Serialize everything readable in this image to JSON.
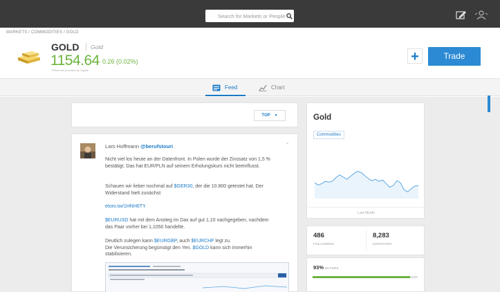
{
  "search": {
    "placeholder": "Search for Markets or People"
  },
  "breadcrumb": "MARKETS / COMMODITIES / GOLD",
  "asset": {
    "name": "GOLD",
    "subtitle": "Gold",
    "price": "1154.64",
    "change": "0.26 (0.02%)",
    "price_note": "Prices are provided by Xignite"
  },
  "actions": {
    "add_label": "+",
    "trade_label": "Trade"
  },
  "tabs": [
    {
      "label": "Feed",
      "active": true
    },
    {
      "label": "Chart",
      "active": false
    }
  ],
  "feed": {
    "sort_label": "TOP",
    "post": {
      "author": "Lars Hoffmann",
      "handle": "@berufstouri",
      "p1": "Nicht viel los heute an der Datenfront. In Polen wurde der Zinssatz von 1,5 % bestätigt. Das hat EUR/PLN auf seinem Erholungskurs nicht beeinflusst.",
      "p2_before": "Schauen wir lieber nochmal auf ",
      "p2_link": "$GER30",
      "p2_after": ", der die 10.800 getestet hat. Der Widerstand hielt zunächst",
      "p3_link": "etoro.tw/1HNH6TY",
      "p4_link": "$EURUSD",
      "p4_after": " hat mit dem Anstieg im Dax auf gut 1,10 nachgegeben, nachdem das Paar vorher bei 1,1050 handelte.",
      "p5_before": "Deutlich zulegen kann ",
      "p5_link1": "$EURGBP",
      "p5_mid1": ", auch ",
      "p5_link2": "$EURCHF",
      "p5_mid2": " legt zu.",
      "p5_line2": "Die Verunsicherung begünstigt den Yen. ",
      "p5_link3": "$GOLD",
      "p5_after": " kann sich immerhin stabilisieren."
    }
  },
  "instrument": {
    "title": "Gold",
    "tag": "Commodities",
    "period": "Last Month",
    "line_color": "#5aa7e3",
    "sparkline": [
      0.62,
      0.68,
      0.64,
      0.58,
      0.6,
      0.57,
      0.47,
      0.4,
      0.46,
      0.52,
      0.44,
      0.36,
      0.3,
      0.33,
      0.42,
      0.5,
      0.56,
      0.52,
      0.58,
      0.54,
      0.64,
      0.74,
      0.69,
      0.56,
      0.62,
      0.81,
      0.87,
      0.78,
      0.71,
      0.7
    ]
  },
  "stats": {
    "followers_value": "486",
    "followers_label": "FOLLOWERS",
    "investors_value": "8,283",
    "investors_label": "INVESTORS"
  },
  "sentiment": {
    "buyers_percent_text": "93%",
    "buyers_label": "BUYERS",
    "buyers_fraction": 0.93,
    "bar_color": "#6cb33e"
  }
}
